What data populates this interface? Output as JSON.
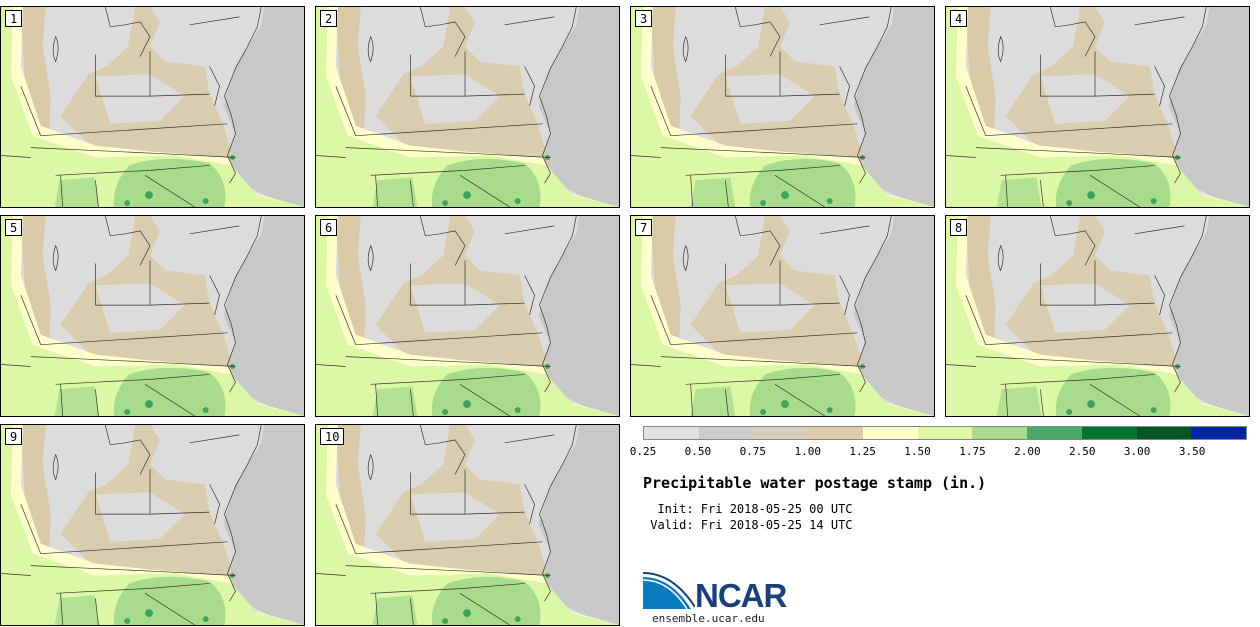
{
  "panels": [
    {
      "label": "1"
    },
    {
      "label": "2"
    },
    {
      "label": "3"
    },
    {
      "label": "4"
    },
    {
      "label": "5"
    },
    {
      "label": "6"
    },
    {
      "label": "7"
    },
    {
      "label": "8"
    },
    {
      "label": "9"
    },
    {
      "label": "10"
    }
  ],
  "colorbar": {
    "colors": [
      "#e1e1e1",
      "#cbcbcb",
      "#d7cfbd",
      "#decca8",
      "#ffffcc",
      "#dcf7a5",
      "#a8dc8c",
      "#4ba965",
      "#03742f",
      "#015522",
      "#0024a6"
    ],
    "ticks": [
      "0.25",
      "0.50",
      "0.75",
      "1.00",
      "1.25",
      "1.50",
      "1.75",
      "2.00",
      "2.50",
      "3.00",
      "3.50"
    ]
  },
  "title": "Precipitable water postage stamp (in.)",
  "init": "Init: Fri 2018-05-25 00 UTC",
  "valid": "Valid: Fri 2018-05-25 14 UTC",
  "logo": {
    "text": "NCAR",
    "blue": "#0b7bc1",
    "navy": "#1a3f7a"
  },
  "site": "ensemble.ucar.edu",
  "map_colors": {
    "ocean": "#c8c8c8",
    "lightgray": "#dcdcdc",
    "tan": "#d9c9a6",
    "cream": "#ffffcc",
    "lightgreen": "#dcf7a5",
    "green": "#a8dc8c",
    "darkgreen": "#3fa55e",
    "lines": "#333333"
  }
}
